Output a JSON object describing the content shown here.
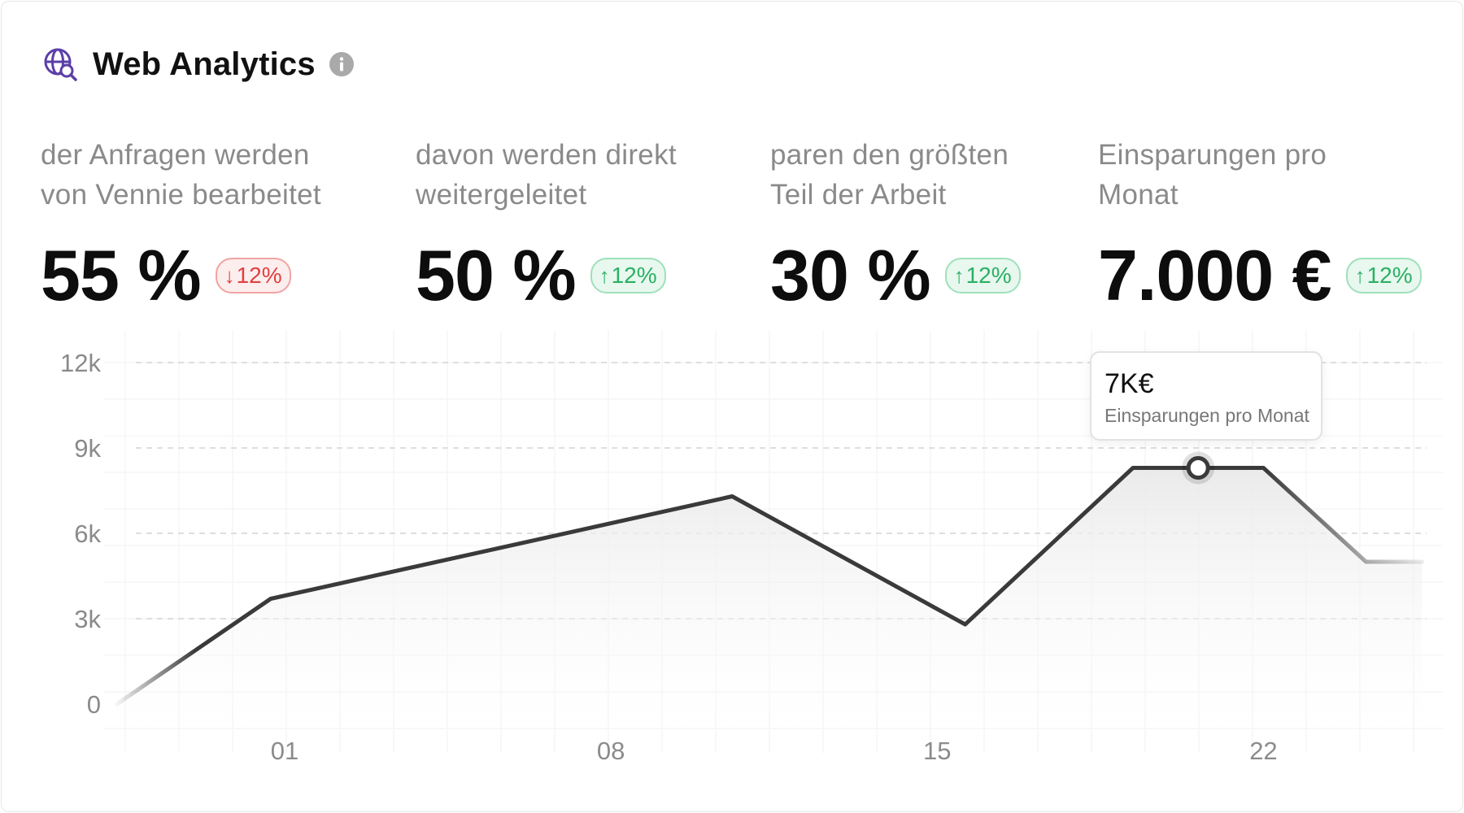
{
  "header": {
    "title": "Web Analytics",
    "icon": "globe-search-icon",
    "info_icon": "info-icon",
    "accent": "#5b3fa8"
  },
  "stats": [
    {
      "label": "der Anfragen werden\nvon Vennie bearbeitet",
      "value": "55 %",
      "change": "12%",
      "direction": "down"
    },
    {
      "label": "davon werden direkt\nweitergeleitet",
      "value": "50 %",
      "change": "12%",
      "direction": "up"
    },
    {
      "label": "paren den größten\nTeil der Arbeit",
      "value": "30 %",
      "change": "12%",
      "direction": "up"
    },
    {
      "label": "Einsparungen pro\nMonat",
      "value": "7.000 €",
      "change": "12%",
      "direction": "up"
    }
  ],
  "colors": {
    "down": "#e0403f",
    "up": "#2bb063",
    "line": "#3a3a3a",
    "label": "#8a8a8a"
  },
  "tooltip": {
    "value": "7K€",
    "label": "Einsparungen pro Monat"
  },
  "chart_data": {
    "type": "area",
    "title": "",
    "xlabel": "",
    "ylabel": "",
    "ylim": [
      0,
      12000
    ],
    "yticks": [
      0,
      3000,
      6000,
      9000,
      12000
    ],
    "ytick_labels": [
      "0",
      "3k",
      "6k",
      "9k",
      "12k"
    ],
    "x_tick_labels": [
      "01",
      "08",
      "15",
      "22"
    ],
    "x_tick_positions": [
      1,
      8,
      15,
      22
    ],
    "xlim": [
      -2.7,
      25.5
    ],
    "grid": true,
    "legend": "none",
    "series": [
      {
        "x": [
          -2.6,
          0.7,
          10.6,
          15.6,
          19.2,
          22.0,
          24.2,
          25.4
        ],
        "y": [
          0,
          3700,
          7300,
          2800,
          8300,
          8300,
          5000,
          5000
        ]
      }
    ],
    "highlight": {
      "x": 20.6,
      "y": 8300
    }
  }
}
